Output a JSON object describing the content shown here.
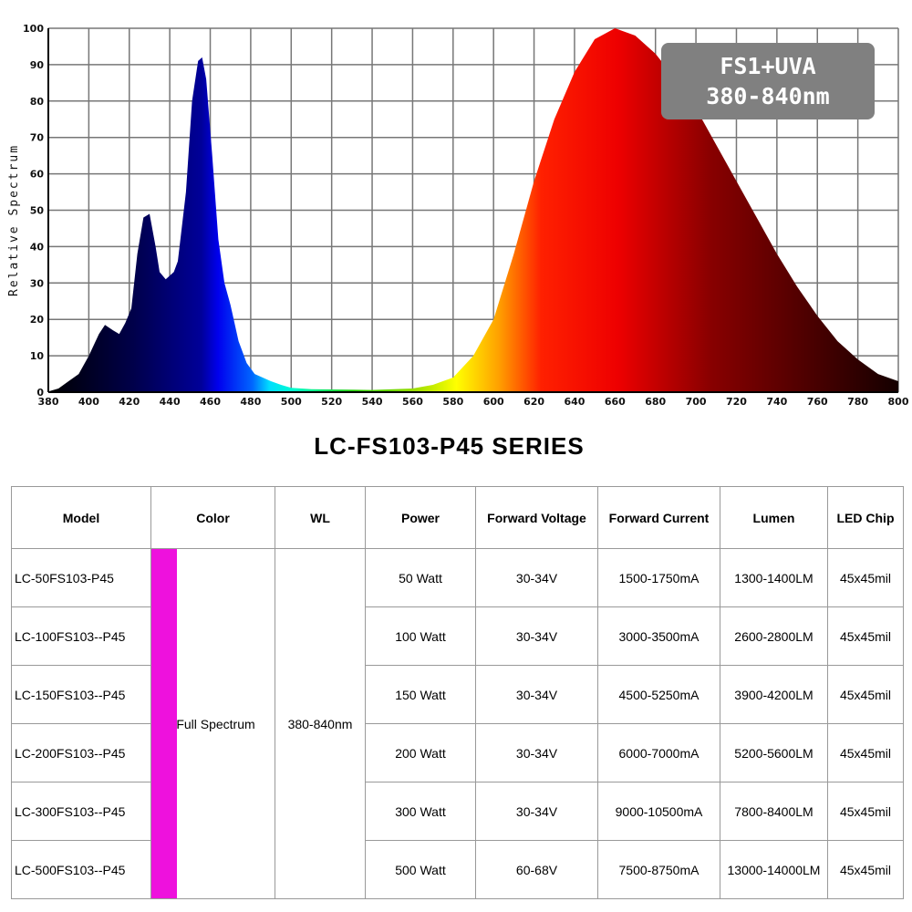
{
  "chart_data": {
    "type": "area",
    "title": "",
    "xlabel": "",
    "ylabel": "Relative Spectrum",
    "xlim": [
      380,
      800
    ],
    "ylim": [
      0,
      100
    ],
    "xticks": [
      380,
      400,
      420,
      440,
      460,
      480,
      500,
      520,
      540,
      560,
      580,
      600,
      620,
      640,
      660,
      680,
      700,
      720,
      740,
      760,
      780,
      800
    ],
    "yticks": [
      0,
      10,
      20,
      30,
      40,
      50,
      60,
      70,
      80,
      90,
      100
    ],
    "grid": true,
    "x": [
      380,
      385,
      390,
      395,
      400,
      405,
      408,
      412,
      415,
      418,
      421,
      424,
      427,
      430,
      433,
      435,
      438,
      442,
      444,
      448,
      451,
      454,
      456,
      458,
      461,
      464,
      467,
      470,
      474,
      478,
      482,
      490,
      495,
      500,
      510,
      540,
      560,
      570,
      580,
      590,
      600,
      610,
      620,
      630,
      640,
      650,
      660,
      670,
      680,
      690,
      700,
      710,
      720,
      730,
      740,
      750,
      760,
      770,
      780,
      790,
      800
    ],
    "y": [
      0.2,
      1,
      3,
      5,
      10,
      16,
      18.5,
      17,
      16,
      19,
      23,
      38,
      48,
      49,
      40,
      33,
      31,
      33,
      36,
      55,
      80,
      91,
      92,
      86,
      65,
      42,
      30,
      24,
      14,
      8,
      5,
      3,
      2,
      1.2,
      0.8,
      0.6,
      1,
      2,
      4,
      10,
      20,
      38,
      58,
      75,
      88,
      97,
      100,
      98,
      93,
      86,
      78,
      68,
      58,
      48,
      38,
      29,
      21,
      14,
      9,
      5,
      3
    ]
  },
  "badge": {
    "line1": "FS1+UVA",
    "line2": "380-840nm"
  },
  "series_title": "LC-FS103-P45 SERIES",
  "table": {
    "headers": [
      "Model",
      "Color",
      "WL",
      "Power",
      "Forward Voltage",
      "Forward Current",
      "Lumen",
      "LED Chip"
    ],
    "color": "Full Spectrum",
    "swatch_color": "#ee11dd",
    "wl": "380-840nm",
    "rows": [
      {
        "model": "LC-50FS103-P45",
        "power": "50 Watt",
        "voltage": "30-34V",
        "current": "1500-1750mA",
        "lumen": "1300-1400LM",
        "chip": "45x45mil"
      },
      {
        "model": "LC-100FS103--P45",
        "power": "100 Watt",
        "voltage": "30-34V",
        "current": "3000-3500mA",
        "lumen": "2600-2800LM",
        "chip": "45x45mil"
      },
      {
        "model": "LC-150FS103--P45",
        "power": "150 Watt",
        "voltage": "30-34V",
        "current": "4500-5250mA",
        "lumen": "3900-4200LM",
        "chip": "45x45mil"
      },
      {
        "model": "LC-200FS103--P45",
        "power": "200 Watt",
        "voltage": "30-34V",
        "current": "6000-7000mA",
        "lumen": "5200-5600LM",
        "chip": "45x45mil"
      },
      {
        "model": "LC-300FS103--P45",
        "power": "300 Watt",
        "voltage": "30-34V",
        "current": "9000-10500mA",
        "lumen": "7800-8400LM",
        "chip": "45x45mil"
      },
      {
        "model": "LC-500FS103--P45",
        "power": "500 Watt",
        "voltage": "60-68V",
        "current": "7500-8750mA",
        "lumen": "13000-14000LM",
        "chip": "45x45mil"
      }
    ]
  }
}
